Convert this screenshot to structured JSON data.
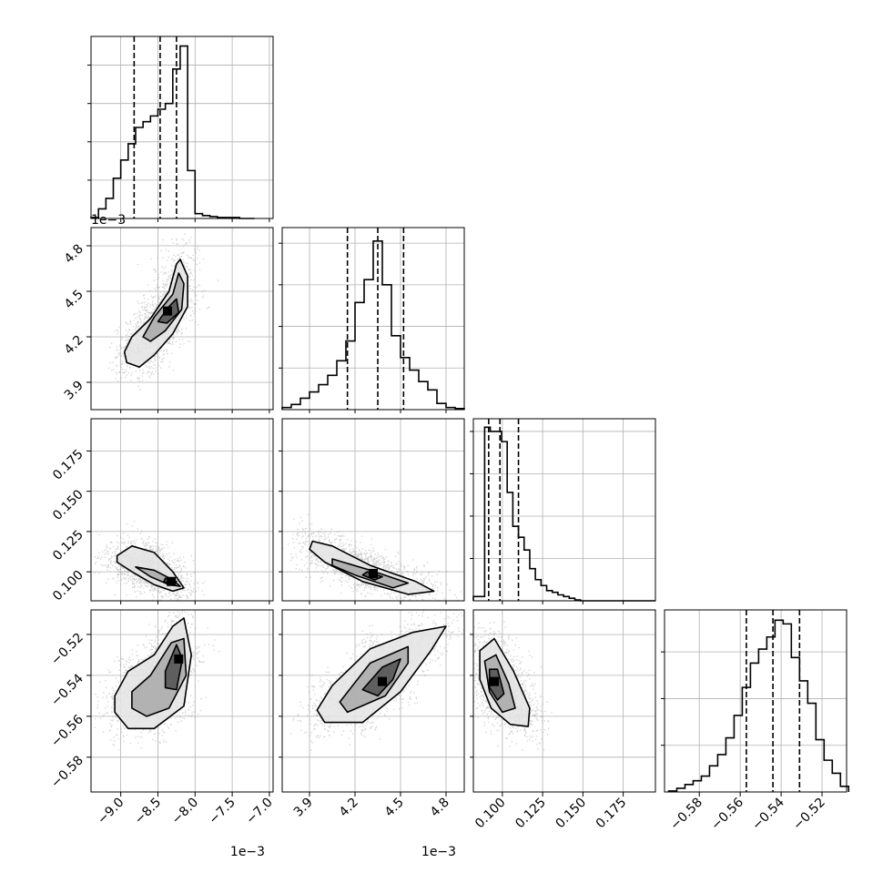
{
  "chart_data": {
    "type": "corner",
    "title": "",
    "colors": {
      "line": "#000000",
      "grid": "#b0b0b0",
      "scatter": "#9a9a9a",
      "background": "#ffffff"
    },
    "grid": true,
    "quantiles_shown": "dashed vertical lines on diagonal histograms",
    "parameters": [
      {
        "id": "p0",
        "axis_range": [
          -0.0094,
          -0.00695
        ],
        "ticks": [
          -0.009,
          -0.0085,
          -0.008,
          -0.0075,
          -0.007
        ],
        "tick_labels": [
          "−9.0",
          "−8.5",
          "−8.0",
          "−7.5",
          "−7.0"
        ],
        "offset_text": "1e−3",
        "quantiles": [
          -0.00882,
          -0.00847,
          -0.00825
        ],
        "hist_bin_edges": [
          -0.0094,
          -0.0093,
          -0.0092,
          -0.0091,
          -0.009,
          -0.0089,
          -0.0088,
          -0.0087,
          -0.0086,
          -0.0085,
          -0.0084,
          -0.0083,
          -0.0082,
          -0.0081,
          -0.008,
          -0.0079,
          -0.0078,
          -0.0077,
          -0.0076,
          -0.0075,
          -0.0074,
          -0.0073,
          -0.0072
        ],
        "hist_counts": [
          1,
          10,
          21,
          42,
          61,
          78,
          95,
          101,
          107,
          114,
          120,
          156,
          180,
          50,
          5,
          3,
          2,
          1,
          1,
          1,
          0,
          0
        ],
        "hist_ymax": 190
      },
      {
        "id": "p1",
        "axis_range": [
          0.00372,
          0.00492
        ],
        "ticks": [
          0.0039,
          0.0042,
          0.0045,
          0.0048
        ],
        "tick_labels": [
          "3.9",
          "4.2",
          "4.5",
          "4.8"
        ],
        "offset_text": "1e−3",
        "quantiles": [
          0.00415,
          0.00435,
          0.00452
        ],
        "hist_bin_edges": [
          0.00372,
          0.00378,
          0.00384,
          0.0039,
          0.00396,
          0.00402,
          0.00408,
          0.00414,
          0.0042,
          0.00426,
          0.00432,
          0.00438,
          0.00444,
          0.0045,
          0.00456,
          0.00462,
          0.00468,
          0.00474,
          0.0048,
          0.00486,
          0.00492
        ],
        "hist_counts": [
          2,
          5,
          11,
          17,
          24,
          33,
          47,
          66,
          103,
          125,
          162,
          120,
          71,
          50,
          38,
          27,
          19,
          6,
          2,
          1
        ],
        "hist_ymax": 175
      },
      {
        "id": "p2",
        "axis_range": [
          0.082,
          0.195
        ],
        "ticks": [
          0.1,
          0.125,
          0.15,
          0.175
        ],
        "tick_labels": [
          "0.100",
          "0.125",
          "0.150",
          "0.175"
        ],
        "offset_text": "",
        "quantiles": [
          0.0915,
          0.0985,
          0.11
        ],
        "hist_bin_edges": [
          0.082,
          0.0855,
          0.089,
          0.0925,
          0.096,
          0.0995,
          0.103,
          0.1065,
          0.11,
          0.1135,
          0.117,
          0.1205,
          0.124,
          0.1275,
          0.131,
          0.1345,
          0.138,
          0.1415,
          0.145,
          0.1485,
          0.152,
          0.1555,
          0.159,
          0.1625,
          0.166,
          0.1695,
          0.173,
          0.1765,
          0.18,
          0.1835,
          0.187,
          0.1905,
          0.195
        ],
        "hist_counts": [
          5,
          5,
          205,
          200,
          200,
          188,
          128,
          88,
          75,
          60,
          38,
          25,
          18,
          12,
          10,
          7,
          5,
          3,
          1,
          0,
          0,
          0,
          0,
          0,
          0,
          0,
          0,
          0,
          0,
          0,
          0,
          0
        ],
        "hist_ymax": 215
      },
      {
        "id": "p3",
        "axis_range": [
          -0.597,
          -0.508
        ],
        "ticks": [
          -0.58,
          -0.56,
          -0.54,
          -0.52
        ],
        "tick_labels": [
          "−0.58",
          "−0.56",
          "−0.54",
          "−0.52"
        ],
        "offset_text": "",
        "quantiles": [
          -0.557,
          -0.544,
          -0.531
        ],
        "hist_bin_edges": [
          -0.595,
          -0.591,
          -0.587,
          -0.583,
          -0.579,
          -0.575,
          -0.571,
          -0.567,
          -0.563,
          -0.559,
          -0.555,
          -0.551,
          -0.547,
          -0.543,
          -0.539,
          -0.535,
          -0.531,
          -0.527,
          -0.523,
          -0.519,
          -0.515,
          -0.511,
          -0.507
        ],
        "hist_counts": [
          1,
          4,
          8,
          12,
          17,
          28,
          40,
          58,
          82,
          112,
          138,
          153,
          166,
          184,
          180,
          144,
          119,
          95,
          56,
          34,
          20,
          6
        ],
        "hist_ymax": 195
      }
    ],
    "pair_panels": [
      {
        "x": "p0",
        "y": "p1",
        "scatter_center": [
          -0.00855,
          0.00428
        ],
        "mode": [
          -0.00837,
          0.00437
        ],
        "contour_levels": [
          [
            [
              -0.00895,
              0.0041
            ],
            [
              -0.00885,
              0.0042
            ],
            [
              -0.0086,
              0.00432
            ],
            [
              -0.00835,
              0.0045
            ],
            [
              -0.00825,
              0.00468
            ],
            [
              -0.0082,
              0.00471
            ],
            [
              -0.0081,
              0.0046
            ],
            [
              -0.0081,
              0.0044
            ],
            [
              -0.0083,
              0.00422
            ],
            [
              -0.00855,
              0.00408
            ],
            [
              -0.00875,
              0.004
            ],
            [
              -0.00892,
              0.00403
            ]
          ],
          [
            [
              -0.0087,
              0.0042
            ],
            [
              -0.00855,
              0.00433
            ],
            [
              -0.0083,
              0.00448
            ],
            [
              -0.00822,
              0.00462
            ],
            [
              -0.00815,
              0.00455
            ],
            [
              -0.00818,
              0.00438
            ],
            [
              -0.0084,
              0.00424
            ],
            [
              -0.0086,
              0.00417
            ]
          ],
          [
            [
              -0.0085,
              0.0043
            ],
            [
              -0.00835,
              0.0044
            ],
            [
              -0.00825,
              0.00445
            ],
            [
              -0.00822,
              0.00436
            ],
            [
              -0.00838,
              0.00429
            ]
          ]
        ]
      },
      {
        "x": "p0",
        "y": "p2",
        "scatter_center": [
          -0.0085,
          0.108
        ],
        "mode": [
          -0.00832,
          0.094
        ],
        "contour_levels": [
          [
            [
              -0.00905,
              0.11
            ],
            [
              -0.00885,
              0.116
            ],
            [
              -0.00855,
              0.112
            ],
            [
              -0.0083,
              0.1
            ],
            [
              -0.00815,
              0.09
            ],
            [
              -0.0083,
              0.088
            ],
            [
              -0.00855,
              0.092
            ],
            [
              -0.00885,
              0.1
            ],
            [
              -0.00905,
              0.106
            ]
          ],
          [
            [
              -0.0088,
              0.103
            ],
            [
              -0.00855,
              0.101
            ],
            [
              -0.0083,
              0.095
            ],
            [
              -0.0082,
              0.091
            ],
            [
              -0.00835,
              0.092
            ],
            [
              -0.0086,
              0.097
            ]
          ],
          [
            [
              -0.0084,
              0.096
            ],
            [
              -0.00825,
              0.094
            ],
            [
              -0.0083,
              0.092
            ],
            [
              -0.00842,
              0.094
            ]
          ]
        ]
      },
      {
        "x": "p1",
        "y": "p2",
        "scatter_center": [
          0.00425,
          0.105
        ],
        "mode": [
          0.00432,
          0.099
        ],
        "contour_levels": [
          [
            [
              0.00392,
              0.119
            ],
            [
              0.00405,
              0.116
            ],
            [
              0.0043,
              0.104
            ],
            [
              0.0046,
              0.094
            ],
            [
              0.00472,
              0.088
            ],
            [
              0.00455,
              0.086
            ],
            [
              0.00425,
              0.094
            ],
            [
              0.004,
              0.106
            ],
            [
              0.0039,
              0.114
            ]
          ],
          [
            [
              0.00405,
              0.108
            ],
            [
              0.0043,
              0.101
            ],
            [
              0.00455,
              0.093
            ],
            [
              0.00445,
              0.09
            ],
            [
              0.0042,
              0.098
            ],
            [
              0.00405,
              0.104
            ]
          ],
          [
            [
              0.00428,
              0.1
            ],
            [
              0.00438,
              0.097
            ],
            [
              0.00433,
              0.095
            ],
            [
              0.00425,
              0.098
            ]
          ]
        ]
      },
      {
        "x": "p0",
        "y": "p3",
        "scatter_center": [
          -0.00855,
          -0.547
        ],
        "mode": [
          -0.00822,
          -0.532
        ],
        "contour_levels": [
          [
            [
              -0.00908,
              -0.55
            ],
            [
              -0.0089,
              -0.538
            ],
            [
              -0.00855,
              -0.53
            ],
            [
              -0.0083,
              -0.516
            ],
            [
              -0.00815,
              -0.512
            ],
            [
              -0.00805,
              -0.53
            ],
            [
              -0.00815,
              -0.555
            ],
            [
              -0.00855,
              -0.566
            ],
            [
              -0.0089,
              -0.566
            ],
            [
              -0.00908,
              -0.558
            ]
          ],
          [
            [
              -0.00885,
              -0.548
            ],
            [
              -0.0086,
              -0.54
            ],
            [
              -0.00832,
              -0.524
            ],
            [
              -0.00815,
              -0.522
            ],
            [
              -0.00812,
              -0.54
            ],
            [
              -0.00835,
              -0.556
            ],
            [
              -0.00865,
              -0.56
            ],
            [
              -0.00885,
              -0.556
            ]
          ],
          [
            [
              -0.0084,
              -0.538
            ],
            [
              -0.00825,
              -0.525
            ],
            [
              -0.00817,
              -0.532
            ],
            [
              -0.00825,
              -0.547
            ],
            [
              -0.0084,
              -0.546
            ]
          ]
        ]
      },
      {
        "x": "p1",
        "y": "p3",
        "scatter_center": [
          0.0043,
          -0.544
        ],
        "mode": [
          0.00438,
          -0.543
        ],
        "contour_levels": [
          [
            [
              0.00395,
              -0.557
            ],
            [
              0.00405,
              -0.545
            ],
            [
              0.0043,
              -0.527
            ],
            [
              0.00458,
              -0.519
            ],
            [
              0.0048,
              -0.516
            ],
            [
              0.0047,
              -0.528
            ],
            [
              0.0045,
              -0.548
            ],
            [
              0.00425,
              -0.563
            ],
            [
              0.004,
              -0.563
            ]
          ],
          [
            [
              0.0041,
              -0.553
            ],
            [
              0.0043,
              -0.534
            ],
            [
              0.00455,
              -0.526
            ],
            [
              0.00455,
              -0.534
            ],
            [
              0.0044,
              -0.55
            ],
            [
              0.00415,
              -0.558
            ]
          ],
          [
            [
              0.00425,
              -0.547
            ],
            [
              0.00438,
              -0.536
            ],
            [
              0.0045,
              -0.532
            ],
            [
              0.00445,
              -0.542
            ],
            [
              0.00435,
              -0.55
            ]
          ]
        ]
      },
      {
        "x": "p2",
        "y": "p3",
        "scatter_center": [
          0.102,
          -0.546
        ],
        "mode": [
          0.095,
          -0.543
        ],
        "contour_levels": [
          [
            [
              0.086,
              -0.528
            ],
            [
              0.095,
              -0.522
            ],
            [
              0.107,
              -0.538
            ],
            [
              0.117,
              -0.556
            ],
            [
              0.116,
              -0.565
            ],
            [
              0.105,
              -0.564
            ],
            [
              0.093,
              -0.556
            ],
            [
              0.086,
              -0.542
            ]
          ],
          [
            [
              0.089,
              -0.533
            ],
            [
              0.096,
              -0.53
            ],
            [
              0.104,
              -0.544
            ],
            [
              0.108,
              -0.556
            ],
            [
              0.1,
              -0.558
            ],
            [
              0.092,
              -0.548
            ]
          ],
          [
            [
              0.092,
              -0.537
            ],
            [
              0.097,
              -0.537
            ],
            [
              0.101,
              -0.549
            ],
            [
              0.097,
              -0.552
            ],
            [
              0.092,
              -0.546
            ]
          ]
        ]
      }
    ]
  }
}
